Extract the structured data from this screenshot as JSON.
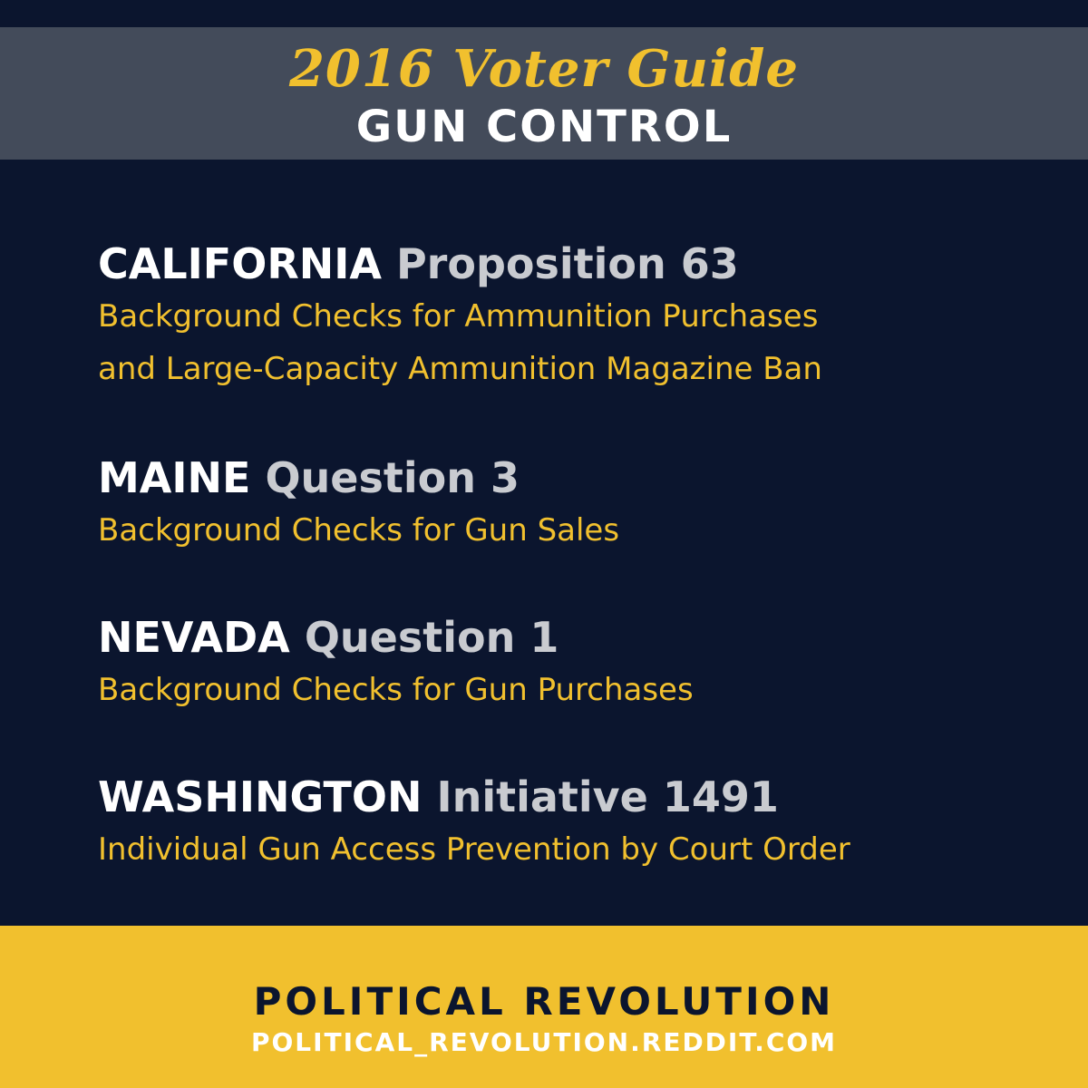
{
  "header": {
    "script_title": "2016 Voter Guide",
    "topic": "GUN CONTROL"
  },
  "measures": [
    {
      "state": "CALIFORNIA",
      "measure": "Proposition 63",
      "description_lines": [
        "Background Checks for Ammunition Purchases",
        "and Large-Capacity Ammunition Magazine Ban"
      ]
    },
    {
      "state": "MAINE",
      "measure": "Question 3",
      "description_lines": [
        "Background Checks for Gun Sales"
      ]
    },
    {
      "state": "NEVADA",
      "measure": "Question 1",
      "description_lines": [
        "Background Checks for Gun Purchases"
      ]
    },
    {
      "state": "WASHINGTON",
      "measure": "Initiative 1491",
      "description_lines": [
        "Individual Gun Access Prevention by Court Order"
      ]
    }
  ],
  "footer": {
    "org_name": "POLITICAL REVOLUTION",
    "url": "POLITICAL_REVOLUTION.REDDIT.COM"
  },
  "colors": {
    "background": "#0b152e",
    "header_band": "#434b5a",
    "accent_gold": "#f1c02e",
    "white": "#ffffff",
    "measure_gray": "#c9cbd0"
  }
}
